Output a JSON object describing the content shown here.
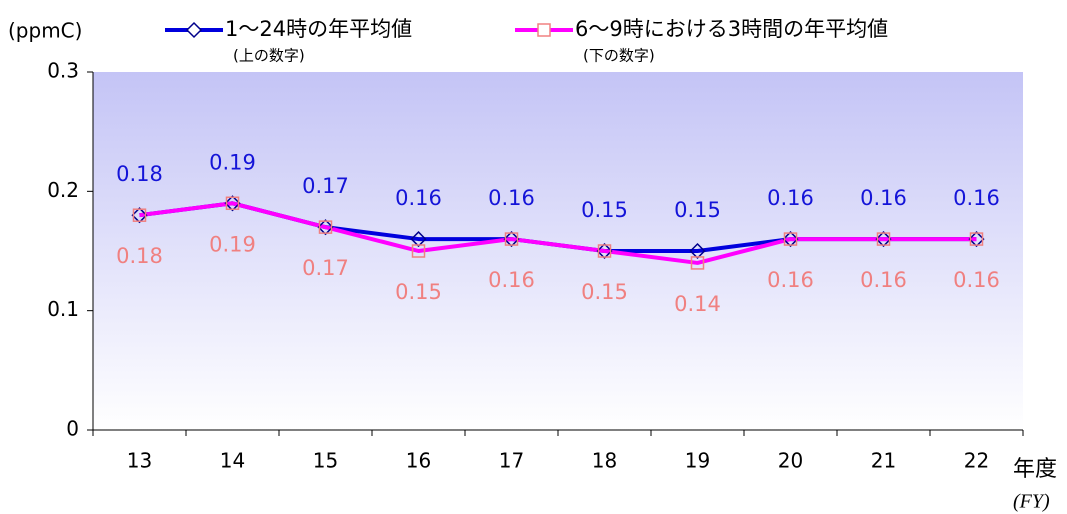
{
  "chart_data": {
    "type": "line",
    "y_unit": "(ppmC)",
    "x_label": "年度",
    "x_label_en": "(FY)",
    "categories": [
      "13",
      "14",
      "15",
      "16",
      "17",
      "18",
      "19",
      "20",
      "21",
      "22"
    ],
    "series": [
      {
        "name": "1～24時の年平均値",
        "legend_note": "(上の数字)",
        "color": "#0000dd",
        "marker_color": "#00008b",
        "label_color": "#1414d8",
        "values": [
          0.18,
          0.19,
          0.17,
          0.16,
          0.16,
          0.15,
          0.15,
          0.16,
          0.16,
          0.16
        ]
      },
      {
        "name": "6～9時における3時間の年平均値",
        "legend_note": "(下の数字)",
        "color": "#ff00ff",
        "marker_color": "#f08080",
        "label_color": "#f08080",
        "values": [
          0.18,
          0.19,
          0.17,
          0.15,
          0.16,
          0.15,
          0.14,
          0.16,
          0.16,
          0.16
        ]
      }
    ],
    "ylim": [
      0,
      0.3
    ],
    "yticks": [
      0,
      0.1,
      0.2,
      0.3
    ]
  }
}
